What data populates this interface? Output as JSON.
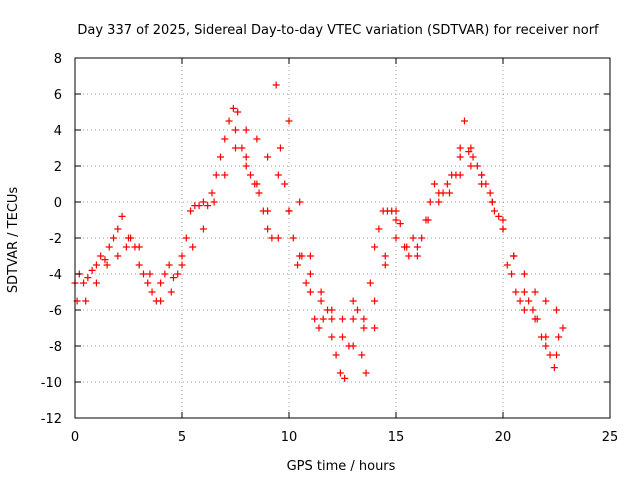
{
  "chart_data": {
    "type": "scatter",
    "title": "Day 337 of 2025, Sidereal Day-to-day VTEC variation (SDTVAR) for receiver norf",
    "xlabel": "GPS time / hours",
    "ylabel": "SDTVAR / TECUs",
    "xlim": [
      0,
      25
    ],
    "ylim": [
      -12,
      8
    ],
    "xticks": [
      0,
      5,
      10,
      15,
      20,
      25
    ],
    "yticks": [
      -12,
      -10,
      -8,
      -6,
      -4,
      -2,
      0,
      2,
      4,
      6,
      8
    ],
    "xtick_labels": [
      "0",
      "5",
      "10",
      "15",
      "20",
      "25"
    ],
    "ytick_labels": [
      "-12",
      "-10",
      "-8",
      "-6",
      "-4",
      "-2",
      "0",
      "2",
      "4",
      "6",
      "8"
    ],
    "grid": true,
    "marker": "+",
    "color": "#ff0000",
    "series": [
      {
        "x": [
          0.0,
          0.2,
          0.4,
          0.6,
          0.8,
          1.0,
          1.2,
          1.4,
          1.6,
          1.8,
          2.0,
          2.2,
          2.4,
          2.6,
          2.8,
          3.0,
          3.2,
          3.4,
          3.6,
          3.8,
          4.0,
          4.2,
          4.4,
          4.6,
          4.8,
          5.0,
          5.2,
          5.4,
          5.6,
          5.8,
          6.0,
          6.2,
          6.4,
          6.6,
          6.8,
          7.0,
          7.2,
          7.4,
          7.6,
          7.8,
          8.0,
          8.2,
          8.4,
          8.6,
          8.8,
          9.0,
          9.2,
          9.4,
          9.6,
          9.8,
          10.0,
          10.2,
          10.4,
          10.6,
          10.8,
          11.0,
          11.2,
          11.4,
          11.6,
          11.8,
          12.0,
          12.2,
          12.4,
          12.6,
          12.8,
          13.0,
          13.2,
          13.4,
          13.6,
          13.8,
          14.0,
          14.2,
          14.4,
          14.6,
          14.8,
          15.0,
          15.2,
          15.4,
          15.6,
          15.8,
          16.0,
          16.2,
          16.4,
          16.6,
          16.8,
          17.0,
          17.2,
          17.4,
          17.6,
          17.8,
          18.0,
          18.2,
          18.4,
          18.6,
          18.8,
          19.0,
          19.2,
          19.4,
          19.6,
          19.8,
          20.0,
          20.2,
          20.4,
          20.6,
          20.8,
          21.0,
          21.2,
          21.4,
          21.6,
          21.8,
          22.0,
          22.2,
          22.4,
          22.6,
          22.8
        ],
        "y": [
          -4.5,
          -4.0,
          -4.5,
          -4.2,
          -3.8,
          -3.5,
          -3.0,
          -3.2,
          -2.5,
          -2.0,
          -1.5,
          -0.8,
          -2.5,
          -2.0,
          -2.5,
          -3.5,
          -4.0,
          -4.5,
          -5.0,
          -5.5,
          -4.5,
          -4.0,
          -3.5,
          -4.2,
          -4.0,
          -3.0,
          -2.0,
          -0.5,
          -0.2,
          -0.2,
          0.0,
          -0.2,
          0.5,
          1.5,
          2.5,
          3.5,
          4.5,
          5.2,
          5.0,
          3.0,
          2.5,
          1.5,
          1.0,
          0.5,
          -0.5,
          -1.5,
          -2.0,
          6.5,
          3.0,
          1.0,
          -0.5,
          -2.0,
          -3.5,
          -3.0,
          -4.5,
          -5.0,
          -6.5,
          -7.0,
          -6.5,
          -6.0,
          -7.5,
          -8.5,
          -9.5,
          -9.8,
          -8.0,
          -6.5,
          -6.0,
          -8.5,
          -9.5,
          -4.5,
          -2.5,
          -1.5,
          -0.5,
          -0.5,
          -0.5,
          -1.0,
          -1.2,
          -2.5,
          -3.0,
          -2.0,
          -2.5,
          -2.0,
          -1.0,
          0.0,
          1.0,
          0.5,
          0.5,
          1.0,
          1.5,
          1.5,
          2.5,
          4.5,
          2.8,
          2.5,
          2.0,
          1.5,
          1.0,
          0.5,
          -0.5,
          -0.8,
          -1.5,
          -3.5,
          -4.0,
          -5.0,
          -5.5,
          -6.0,
          -5.5,
          -6.0,
          -6.5,
          -7.5,
          -8.0,
          -8.5,
          -9.2,
          -7.5,
          -7.0
        ]
      },
      {
        "x": [
          0.1,
          0.5,
          1.0,
          1.5,
          2.0,
          2.5,
          3.0,
          3.5,
          4.0,
          4.5,
          5.0,
          5.5,
          6.0,
          6.5,
          7.0,
          7.5,
          8.0,
          8.5,
          9.0,
          9.5,
          10.0,
          10.5,
          11.0,
          11.5,
          12.0,
          12.5,
          13.0,
          13.5,
          14.0,
          14.5,
          15.0,
          15.5,
          16.0,
          16.5,
          17.0,
          17.5,
          18.0,
          18.5,
          19.0,
          19.5,
          20.0,
          20.5,
          21.0,
          21.5,
          22.0,
          22.5
        ],
        "y": [
          -5.5,
          -5.5,
          -4.5,
          -3.5,
          -3.0,
          -2.0,
          -2.5,
          -4.0,
          -5.5,
          -5.0,
          -3.5,
          -2.5,
          -1.5,
          0.0,
          1.5,
          3.0,
          2.0,
          1.0,
          -0.5,
          -2.0,
          4.5,
          0.0,
          -3.0,
          -5.0,
          -6.5,
          -7.5,
          -8.0,
          -7.0,
          -5.5,
          -3.0,
          -2.0,
          -2.5,
          -3.0,
          -1.0,
          0.0,
          0.5,
          1.5,
          2.0,
          1.0,
          0.0,
          -1.0,
          -3.0,
          -5.0,
          -6.5,
          -7.5,
          -8.5
        ]
      },
      {
        "x": [
          7.5,
          8.0,
          8.5,
          9.0,
          9.5,
          10.0,
          10.5,
          11.0,
          11.5,
          12.0,
          12.5,
          13.0,
          13.5,
          14.0,
          14.5,
          15.0,
          18.0,
          18.5,
          19.0,
          19.5,
          20.0,
          20.5,
          21.0,
          21.5,
          22.0,
          22.5
        ],
        "y": [
          4.0,
          4.0,
          3.5,
          2.5,
          1.5,
          -0.5,
          -3.0,
          -4.0,
          -5.5,
          -6.0,
          -6.5,
          -5.5,
          -6.5,
          -7.0,
          -3.5,
          -0.5,
          3.0,
          3.0,
          1.5,
          0.0,
          -1.5,
          -3.0,
          -4.0,
          -5.0,
          -5.5,
          -6.0
        ]
      }
    ]
  }
}
